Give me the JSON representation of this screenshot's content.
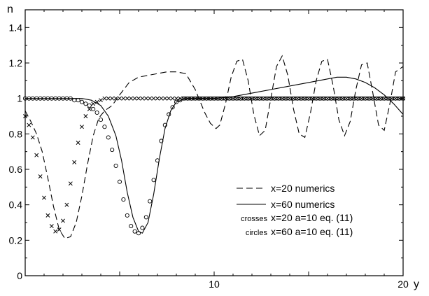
{
  "chart_data": {
    "type": "line",
    "title": "",
    "ylabel": "n",
    "xlabel": "y",
    "xlim": [
      0,
      20
    ],
    "ylim": [
      0,
      1.5
    ],
    "x_ticks": [
      {
        "value": 10,
        "label": "10"
      },
      {
        "value": 20,
        "label": "20"
      }
    ],
    "y_ticks": [
      {
        "value": 0,
        "label": "0"
      },
      {
        "value": 0.2,
        "label": "0.2"
      },
      {
        "value": 0.4,
        "label": "0.4"
      },
      {
        "value": 0.6,
        "label": "0.6"
      },
      {
        "value": 0.8,
        "label": "0.8"
      },
      {
        "value": 1.0,
        "label": "1"
      },
      {
        "value": 1.2,
        "label": "1.2"
      },
      {
        "value": 1.4,
        "label": "1.4"
      }
    ],
    "grid": false,
    "legend_position": "bottom-right",
    "series": [
      {
        "name": "x=20 numerics",
        "legend_key": "",
        "style": "dashed",
        "x": [
          0,
          0.3,
          0.6,
          0.9,
          1.2,
          1.5,
          1.8,
          2.1,
          2.4,
          2.7,
          3.0,
          3.3,
          3.6,
          3.9,
          4.2,
          4.6,
          5.0,
          5.5,
          6.0,
          6.5,
          7.0,
          7.5,
          8.0,
          8.5,
          9.0,
          9.5,
          9.8,
          10.1,
          10.3,
          10.6,
          10.9,
          11.2,
          11.5,
          11.8,
          12.1,
          12.4,
          12.7,
          13.0,
          13.3,
          13.6,
          13.9,
          14.2,
          14.5,
          14.8,
          15.1,
          15.4,
          15.7,
          16.0,
          16.3,
          16.6,
          16.9,
          17.2,
          17.5,
          17.8,
          18.1,
          18.4,
          18.7,
          19.0,
          19.3,
          19.6,
          20.0
        ],
        "y": [
          0.93,
          0.87,
          0.8,
          0.7,
          0.55,
          0.39,
          0.26,
          0.21,
          0.22,
          0.3,
          0.45,
          0.63,
          0.79,
          0.89,
          0.93,
          0.96,
          1.02,
          1.09,
          1.12,
          1.13,
          1.14,
          1.15,
          1.15,
          1.14,
          1.05,
          0.92,
          0.86,
          0.83,
          0.85,
          0.97,
          1.12,
          1.21,
          1.22,
          1.1,
          0.91,
          0.79,
          0.82,
          1.0,
          1.18,
          1.24,
          1.13,
          0.94,
          0.8,
          0.78,
          0.92,
          1.1,
          1.21,
          1.22,
          1.07,
          0.88,
          0.79,
          0.87,
          1.05,
          1.19,
          1.2,
          1.03,
          0.85,
          0.82,
          0.97,
          1.15,
          1.18
        ]
      },
      {
        "name": "x=60 numerics",
        "legend_key": "",
        "style": "solid",
        "x": [
          0,
          1,
          2,
          3,
          3.5,
          4.0,
          4.4,
          4.8,
          5.1,
          5.4,
          5.7,
          6.0,
          6.2,
          6.5,
          6.8,
          7.1,
          7.4,
          7.7,
          8.0,
          8.5,
          9,
          10,
          11,
          12,
          13,
          14,
          15,
          16,
          16.5,
          17,
          17.5,
          18,
          18.5,
          19,
          19.5,
          20
        ],
        "y": [
          1.0,
          1.0,
          1.0,
          1.0,
          0.99,
          0.96,
          0.9,
          0.79,
          0.65,
          0.47,
          0.33,
          0.25,
          0.24,
          0.3,
          0.46,
          0.66,
          0.83,
          0.93,
          0.98,
          1.0,
          1.0,
          1.0,
          1.01,
          1.03,
          1.05,
          1.07,
          1.09,
          1.11,
          1.12,
          1.12,
          1.11,
          1.09,
          1.06,
          1.02,
          0.97,
          0.91
        ]
      },
      {
        "name": "x=20 a=10 eq. (11)",
        "legend_key": "crosses",
        "style": "crosses",
        "x": [
          0,
          0.2,
          0.4,
          0.6,
          0.8,
          1.0,
          1.2,
          1.4,
          1.6,
          1.8,
          2.0,
          2.2,
          2.4,
          2.6,
          2.8,
          3.0,
          3.2,
          3.4,
          3.6,
          3.8,
          4.0,
          4.2,
          4.4,
          4.6,
          4.8,
          5.0,
          5.2,
          5.4,
          5.6,
          5.8,
          6.0,
          6.2,
          6.4,
          6.6,
          6.8,
          7.0,
          7.2,
          7.4,
          7.6,
          7.8,
          8.0,
          8.2,
          8.4,
          8.6,
          8.8,
          9.0,
          9.2,
          9.4,
          9.6,
          9.8,
          10.0,
          10.2,
          10.4,
          10.6,
          10.8,
          11.0,
          11.2,
          11.4,
          11.6,
          11.8,
          12.0,
          12.2,
          12.4,
          12.6,
          12.8,
          13.0,
          13.2,
          13.4,
          13.6,
          13.8,
          14.0,
          14.2,
          14.4,
          14.6,
          14.8,
          15.0,
          15.2,
          15.4,
          15.6,
          15.8,
          16.0,
          16.2,
          16.4,
          16.6,
          16.8,
          17.0,
          17.2,
          17.4,
          17.6,
          17.8,
          18.0,
          18.2,
          18.4,
          18.6,
          18.8,
          19.0,
          19.2,
          19.4,
          19.6,
          19.8,
          20.0
        ],
        "y": [
          0.9,
          0.85,
          0.78,
          0.68,
          0.56,
          0.44,
          0.34,
          0.28,
          0.25,
          0.26,
          0.31,
          0.4,
          0.52,
          0.64,
          0.75,
          0.84,
          0.9,
          0.94,
          0.97,
          0.98,
          0.99,
          1.0,
          1.0,
          1.0,
          1.0,
          1.0,
          1.0,
          1.0,
          1.0,
          1.0,
          1.0,
          1.0,
          1.0,
          1.0,
          1.0,
          1.0,
          1.0,
          1.0,
          1.0,
          1.0,
          1.0,
          1.0,
          1.0,
          1.0,
          1.0,
          1.0,
          1.0,
          1.0,
          1.0,
          1.0,
          1.0,
          1.0,
          1.0,
          1.0,
          1.0,
          1.0,
          1.0,
          1.0,
          1.0,
          1.0,
          1.0,
          1.0,
          1.0,
          1.0,
          1.0,
          1.0,
          1.0,
          1.0,
          1.0,
          1.0,
          1.0,
          1.0,
          1.0,
          1.0,
          1.0,
          1.0,
          1.0,
          1.0,
          1.0,
          1.0,
          1.0,
          1.0,
          1.0,
          1.0,
          1.0,
          1.0,
          1.0,
          1.0,
          1.0,
          1.0,
          1.0,
          1.0,
          1.0,
          1.0,
          1.0,
          1.0,
          1.0,
          1.0,
          1.0,
          1.0,
          1.0
        ]
      },
      {
        "name": "x=60 a=10 eq. (11)",
        "legend_key": "circles",
        "style": "circles",
        "x": [
          0,
          0.2,
          0.4,
          0.6,
          0.8,
          1.0,
          1.2,
          1.4,
          1.6,
          1.8,
          2.0,
          2.2,
          2.4,
          2.6,
          2.8,
          3.0,
          3.2,
          3.4,
          3.6,
          3.8,
          4.0,
          4.2,
          4.4,
          4.6,
          4.8,
          5.0,
          5.2,
          5.4,
          5.6,
          5.8,
          6.0,
          6.2,
          6.4,
          6.6,
          6.8,
          7.0,
          7.2,
          7.4,
          7.6,
          7.8,
          8.0,
          8.2,
          8.4,
          8.6,
          8.8,
          9.0,
          9.2,
          9.4,
          9.6,
          9.8,
          10.0,
          10.2,
          10.4,
          10.6,
          10.8,
          11.0,
          11.2,
          11.4,
          11.6,
          11.8,
          12.0,
          12.2,
          12.4,
          12.6,
          12.8,
          13.0,
          13.2,
          13.4,
          13.6,
          13.8,
          14.0,
          14.2,
          14.4,
          14.6,
          14.8,
          15.0,
          15.2,
          15.4,
          15.6,
          15.8,
          16.0,
          16.2,
          16.4,
          16.6,
          16.8,
          17.0,
          17.2,
          17.4,
          17.6,
          17.8,
          18.0,
          18.2,
          18.4,
          18.6,
          18.8,
          19.0,
          19.2,
          19.4,
          19.6,
          19.8,
          20.0
        ],
        "y": [
          1.0,
          1.0,
          1.0,
          1.0,
          1.0,
          1.0,
          1.0,
          1.0,
          1.0,
          1.0,
          1.0,
          1.0,
          1.0,
          0.99,
          0.99,
          0.98,
          0.97,
          0.96,
          0.94,
          0.92,
          0.88,
          0.84,
          0.78,
          0.71,
          0.62,
          0.53,
          0.43,
          0.34,
          0.28,
          0.25,
          0.24,
          0.27,
          0.33,
          0.42,
          0.54,
          0.65,
          0.76,
          0.85,
          0.91,
          0.95,
          0.98,
          0.99,
          1.0,
          1.0,
          1.0,
          1.0,
          1.0,
          1.0,
          1.0,
          1.0,
          1.0,
          1.0,
          1.0,
          1.0,
          1.0,
          1.0,
          1.0,
          1.0,
          1.0,
          1.0,
          1.0,
          1.0,
          1.0,
          1.0,
          1.0,
          1.0,
          1.0,
          1.0,
          1.0,
          1.0,
          1.0,
          1.0,
          1.0,
          1.0,
          1.0,
          1.0,
          1.0,
          1.0,
          1.0,
          1.0,
          1.0,
          1.0,
          1.0,
          1.0,
          1.0,
          1.0,
          1.0,
          1.0,
          1.0,
          1.0,
          1.0,
          1.0,
          1.0,
          1.0,
          1.0,
          1.0,
          1.0,
          1.0,
          1.0,
          1.0,
          1.0
        ]
      }
    ]
  }
}
